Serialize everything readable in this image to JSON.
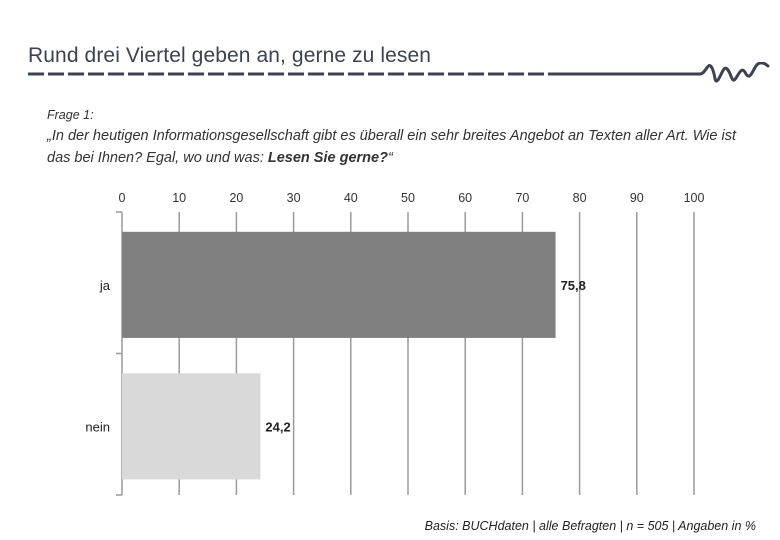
{
  "header": {
    "title": "Rund drei Viertel geben an, gerne zu lesen",
    "logo_icon": "heartbeat-wave-icon"
  },
  "question": {
    "label": "Frage 1:",
    "text_part1": "„In der heutigen Informationsgesellschaft gibt es überall ein sehr breites Angebot an Texten aller Art. Wie ist das bei Ihnen? Egal, wo und was: ",
    "text_bold": "Lesen Sie gerne?",
    "text_part2": "“"
  },
  "chart_data": {
    "type": "bar",
    "orientation": "horizontal",
    "categories": [
      "ja",
      "nein"
    ],
    "values": [
      75.8,
      24.2
    ],
    "value_labels": [
      "75,8",
      "24,2"
    ],
    "colors": [
      "#808080",
      "#d9d9d9"
    ],
    "xlim": [
      0,
      100
    ],
    "x_ticks": [
      0,
      10,
      20,
      30,
      40,
      50,
      60,
      70,
      80,
      90,
      100
    ],
    "grid": true,
    "axis_position": "top",
    "title": "",
    "xlabel": "",
    "ylabel": ""
  },
  "footer": {
    "basis": "Basis: BUCHdaten | alle Befragten | n = 505 | Angaben in %"
  },
  "colors": {
    "title": "#3b4252",
    "grid": "#9a9a9a",
    "accent": "#3b4252"
  }
}
